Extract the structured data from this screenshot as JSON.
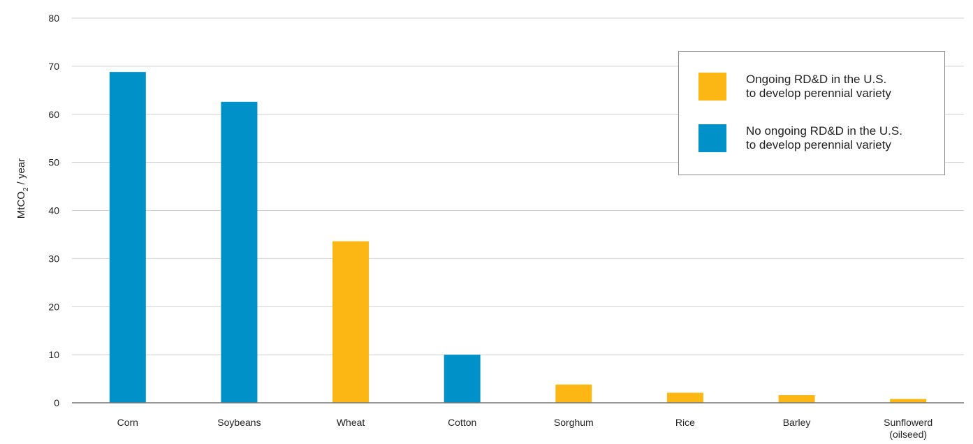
{
  "chart_data": {
    "type": "bar",
    "ylabel_prefix": "MtCO",
    "ylabel_subscript": "2",
    "ylabel_suffix": " / year",
    "ylim": [
      0,
      80
    ],
    "yticks": [
      0,
      10,
      20,
      30,
      40,
      50,
      60,
      70,
      80
    ],
    "grid": true,
    "categories": [
      "Corn",
      "Soybeans",
      "Wheat",
      "Cotton",
      "Sorghum",
      "Rice",
      "Barley",
      "Sunflowerd\n(oilseed)"
    ],
    "values": [
      68.8,
      62.6,
      33.6,
      10.0,
      3.8,
      2.1,
      1.6,
      0.8
    ],
    "groups": [
      "no_rdd",
      "no_rdd",
      "rdd",
      "no_rdd",
      "rdd",
      "rdd",
      "rdd",
      "rdd"
    ],
    "legend_position": "top-right",
    "legend": [
      {
        "key": "rdd",
        "label": "Ongoing RD&D in the U.S.\nto develop perennial variety",
        "color": "#FDB714"
      },
      {
        "key": "no_rdd",
        "label": "No ongoing RD&D in the U.S.\nto develop perennial variety",
        "color": "#0091C8"
      }
    ]
  }
}
